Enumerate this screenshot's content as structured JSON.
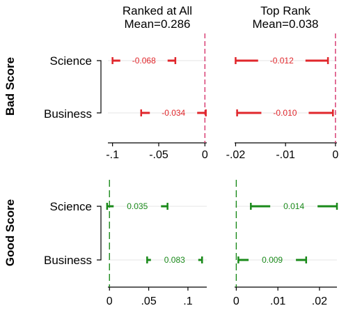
{
  "chart_data": {
    "type": "coefficient-plot",
    "columns": [
      {
        "title_line1": "Ranked at All",
        "title_line2": "Mean=0.286"
      },
      {
        "title_line1": "Top Rank",
        "title_line2": "Mean=0.038"
      }
    ],
    "rows": [
      {
        "title": "Bad Score",
        "color": "#e0262b"
      },
      {
        "title": "Good Score",
        "color": "#1a8a1a"
      }
    ],
    "categories": [
      "Science",
      "Business"
    ],
    "axes": [
      {
        "min": -0.105,
        "max": 0.002,
        "ticks": [
          -0.1,
          -0.05,
          0
        ],
        "tick_labels": [
          "-.1",
          "-.05",
          "0"
        ]
      },
      {
        "min": -0.0202,
        "max": 0.0003,
        "ticks": [
          -0.02,
          -0.01,
          0
        ],
        "tick_labels": [
          "-.02",
          "-.01",
          "0"
        ]
      },
      {
        "min": -0.002,
        "max": 0.124,
        "ticks": [
          0,
          0.05,
          0.1
        ],
        "tick_labels": [
          "0",
          ".05",
          ".1"
        ]
      },
      {
        "min": -0.0004,
        "max": 0.0242,
        "ticks": [
          0,
          0.01,
          0.02
        ],
        "tick_labels": [
          "0",
          ".01",
          ".02"
        ]
      }
    ],
    "panels": [
      {
        "row": 0,
        "col": 0,
        "estimates": [
          {
            "category": "Science",
            "value": -0.068,
            "label": "-0.068",
            "ci": [
              -0.1,
              -0.032
            ]
          },
          {
            "category": "Business",
            "value": -0.034,
            "label": "-0.034",
            "ci": [
              -0.069,
              0.001
            ]
          }
        ]
      },
      {
        "row": 0,
        "col": 1,
        "estimates": [
          {
            "category": "Science",
            "value": -0.012,
            "label": "-0.012",
            "ci": [
              -0.02,
              -0.0015
            ]
          },
          {
            "category": "Business",
            "value": -0.01,
            "label": "-0.010",
            "ci": [
              -0.0197,
              -0.0005
            ]
          }
        ]
      },
      {
        "row": 1,
        "col": 0,
        "estimates": [
          {
            "category": "Science",
            "value": 0.035,
            "label": "0.035",
            "ci": [
              -0.003,
              0.074
            ]
          },
          {
            "category": "Business",
            "value": 0.083,
            "label": "0.083",
            "ci": [
              0.048,
              0.118
            ]
          }
        ]
      },
      {
        "row": 1,
        "col": 1,
        "estimates": [
          {
            "category": "Science",
            "value": 0.014,
            "label": "0.014",
            "ci": [
              0.0035,
              0.0242
            ]
          },
          {
            "category": "Business",
            "value": 0.009,
            "label": "0.009",
            "ci": [
              0.0005,
              0.0168
            ]
          }
        ]
      }
    ],
    "reference_line": 0,
    "grid": true
  }
}
